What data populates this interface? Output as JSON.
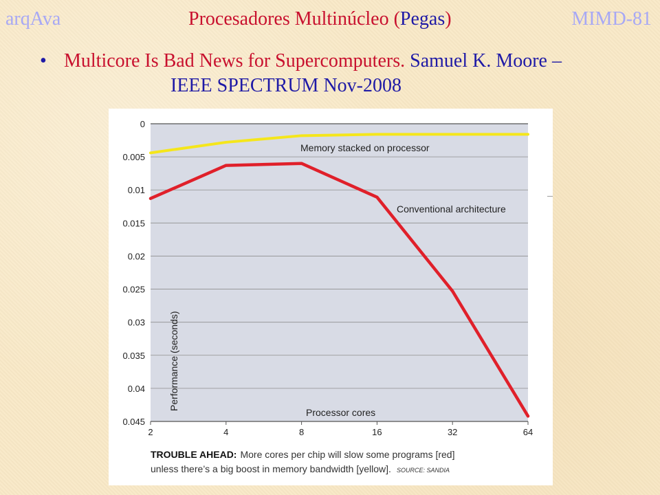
{
  "header": {
    "left": "arqAva",
    "title_main": "Procesadores Multinúcleo (",
    "title_paren": "Pegas",
    "title_close": ")",
    "right": "MIMD-81"
  },
  "bullet": {
    "dot": "•",
    "red_text": "Multicore Is Bad News for Supercomputers.",
    "blue_text": "Samuel K. Moore –",
    "line2": "IEEE SPECTRUM Nov-2008"
  },
  "chart_data": {
    "type": "line",
    "x_scale": "log2",
    "x": [
      2,
      4,
      8,
      16,
      32,
      64
    ],
    "x_tick_labels": [
      "2",
      "4",
      "8",
      "16",
      "32",
      "64"
    ],
    "y_tick_labels": [
      "0",
      "0.005",
      "0.01",
      "0.015",
      "0.02",
      "0.025",
      "0.03",
      "0.035",
      "0.04",
      "0.045"
    ],
    "y_ticks": [
      0,
      0.005,
      0.01,
      0.015,
      0.02,
      0.025,
      0.03,
      0.035,
      0.04,
      0.045
    ],
    "ylim": [
      0,
      0.045
    ],
    "y_inverted": true,
    "xlabel": "Processor cores",
    "ylabel": "Performance (seconds)",
    "grid": true,
    "series": [
      {
        "name": "Memory stacked on processor",
        "color": "#f5e61b",
        "values": [
          0.0044,
          0.0028,
          0.0018,
          0.0016,
          0.0016,
          0.0016
        ]
      },
      {
        "name": "Conventional architecture",
        "color": "#e0202a",
        "values": [
          0.0113,
          0.0063,
          0.006,
          0.0111,
          0.0253,
          0.0442
        ]
      }
    ],
    "annotations": [
      "Memory stacked on processor",
      "Conventional architecture"
    ],
    "caption_bold": "TROUBLE AHEAD:",
    "caption_line1": "More cores per chip will slow some programs [red]",
    "caption_line2": "unless there’s a big boost in memory bandwidth [yellow].",
    "source": "SOURCE: SANDIA"
  }
}
